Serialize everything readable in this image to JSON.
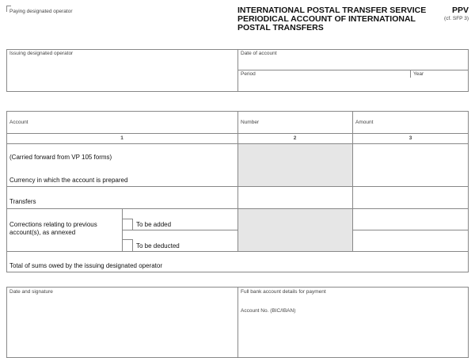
{
  "header": {
    "paying_operator_label": "Paying designated operator",
    "title_lines": [
      "INTERNATIONAL POSTAL TRANSFER SERVICE",
      "PERIODICAL ACCOUNT OF INTERNATIONAL",
      "POSTAL TRANSFERS"
    ],
    "form_code": "PPV",
    "form_ref": "(cf. SFP 3)"
  },
  "top_box": {
    "issuing_operator": "Issuing designated operator",
    "date_of_account": "Date of account",
    "period": "Period",
    "year": "Year"
  },
  "table": {
    "headers": [
      "Account",
      "Number",
      "Amount"
    ],
    "col_numbers": [
      "1",
      "2",
      "3"
    ],
    "carried_forward": "(Carried forward from VP 105 forms)",
    "currency": "Currency in which the account is prepared",
    "transfers": "Transfers",
    "corrections": "Corrections relating to previous account(s), as annexed",
    "to_be_added": "To be added",
    "to_be_deducted": "To be deducted",
    "total": "Total of sums owed by the issuing designated operator"
  },
  "bottom_box": {
    "date_signature": "Date and signature",
    "bank_details": "Full bank account details for payment",
    "account_no": "Account No. (BIC/IBAN)"
  }
}
